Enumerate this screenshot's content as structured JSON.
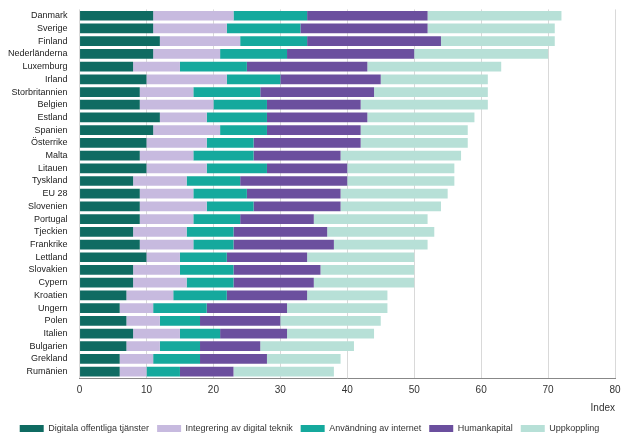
{
  "chart_data": {
    "type": "bar",
    "orientation": "horizontal",
    "stacked": true,
    "grid": true,
    "legend": "bottom",
    "xlabel": "Index",
    "xlim": [
      0,
      80
    ],
    "xticks": [
      0,
      10,
      20,
      30,
      40,
      50,
      60,
      70,
      80
    ],
    "categories": [
      "Danmark",
      "Sverige",
      "Finland",
      "Nederländerna",
      "Luxemburg",
      "Irland",
      "Storbritannien",
      "Belgien",
      "Estland",
      "Spanien",
      "Österrike",
      "Malta",
      "Litauen",
      "Tyskland",
      "EU 28",
      "Slovenien",
      "Portugal",
      "Tjeckien",
      "Frankrike",
      "Lettland",
      "Slovakien",
      "Cypern",
      "Kroatien",
      "Ungern",
      "Polen",
      "Italien",
      "Bulgarien",
      "Grekland",
      "Rumänien"
    ],
    "series": [
      {
        "name": "Digitala offentliga tjänster",
        "color": "#0f6b62",
        "values": [
          11,
          11,
          12,
          11,
          8,
          10,
          9,
          9,
          12,
          11,
          10,
          9,
          10,
          8,
          9,
          9,
          9,
          8,
          9,
          10,
          8,
          8,
          7,
          6,
          7,
          8,
          7,
          6,
          6
        ]
      },
      {
        "name": "Integrering av digital teknik",
        "color": "#c7badf",
        "values": [
          12,
          11,
          12,
          10,
          7,
          12,
          8,
          11,
          7,
          10,
          9,
          8,
          9,
          8,
          8,
          10,
          8,
          8,
          8,
          5,
          7,
          8,
          7,
          5,
          5,
          7,
          5,
          5,
          4
        ]
      },
      {
        "name": "Användning av internet",
        "color": "#15a99d",
        "values": [
          11,
          11,
          10,
          10,
          10,
          8,
          10,
          8,
          9,
          7,
          7,
          9,
          9,
          8,
          8,
          7,
          7,
          7,
          6,
          7,
          8,
          7,
          8,
          8,
          6,
          6,
          6,
          7,
          5
        ]
      },
      {
        "name": "Humankapital",
        "color": "#6b4f9e",
        "values": [
          18,
          19,
          20,
          19,
          18,
          15,
          17,
          14,
          15,
          14,
          16,
          13,
          12,
          16,
          14,
          13,
          11,
          14,
          15,
          12,
          13,
          12,
          12,
          12,
          12,
          10,
          9,
          10,
          8
        ]
      },
      {
        "name": "Uppkoppling",
        "color": "#b7e0d7",
        "values": [
          20,
          19,
          17,
          20,
          20,
          16,
          17,
          19,
          16,
          16,
          16,
          18,
          16,
          16,
          16,
          15,
          17,
          16,
          14,
          16,
          14,
          15,
          12,
          15,
          15,
          13,
          14,
          11,
          15
        ]
      }
    ]
  }
}
